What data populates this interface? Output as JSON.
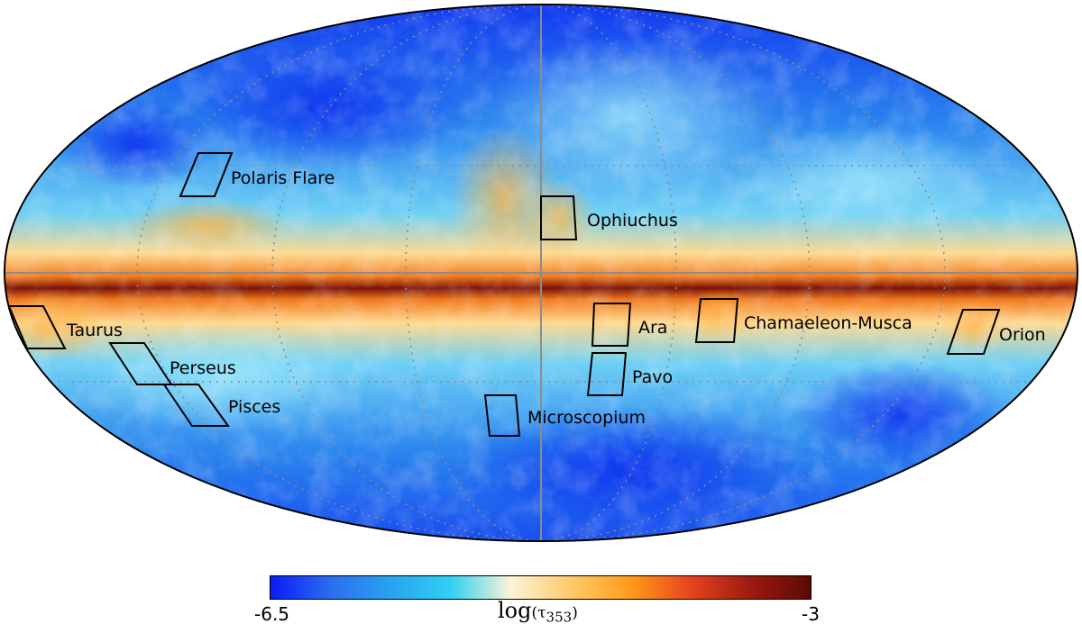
{
  "map": {
    "projection": "mollweide",
    "colormap": [
      "#0a1cf5",
      "#2a6ef0",
      "#29a3ef",
      "#2fd0f1",
      "#fdf3d9",
      "#ffcb6b",
      "#ff9b1b",
      "#e8431e",
      "#9c1a10",
      "#5c0a06"
    ],
    "regions": [
      {
        "name": "Polaris Flare"
      },
      {
        "name": "Ophiuchus"
      },
      {
        "name": "Taurus"
      },
      {
        "name": "Perseus"
      },
      {
        "name": "Pisces"
      },
      {
        "name": "Ara"
      },
      {
        "name": "Chamaeleon-Musca"
      },
      {
        "name": "Orion"
      },
      {
        "name": "Pavo"
      },
      {
        "name": "Microscopium"
      }
    ]
  },
  "colorbar": {
    "min_label": "-6.5",
    "max_label": "-3",
    "title_prefix": "log",
    "title_var": "(τ",
    "title_sub": "353",
    "title_suffix": ")"
  }
}
